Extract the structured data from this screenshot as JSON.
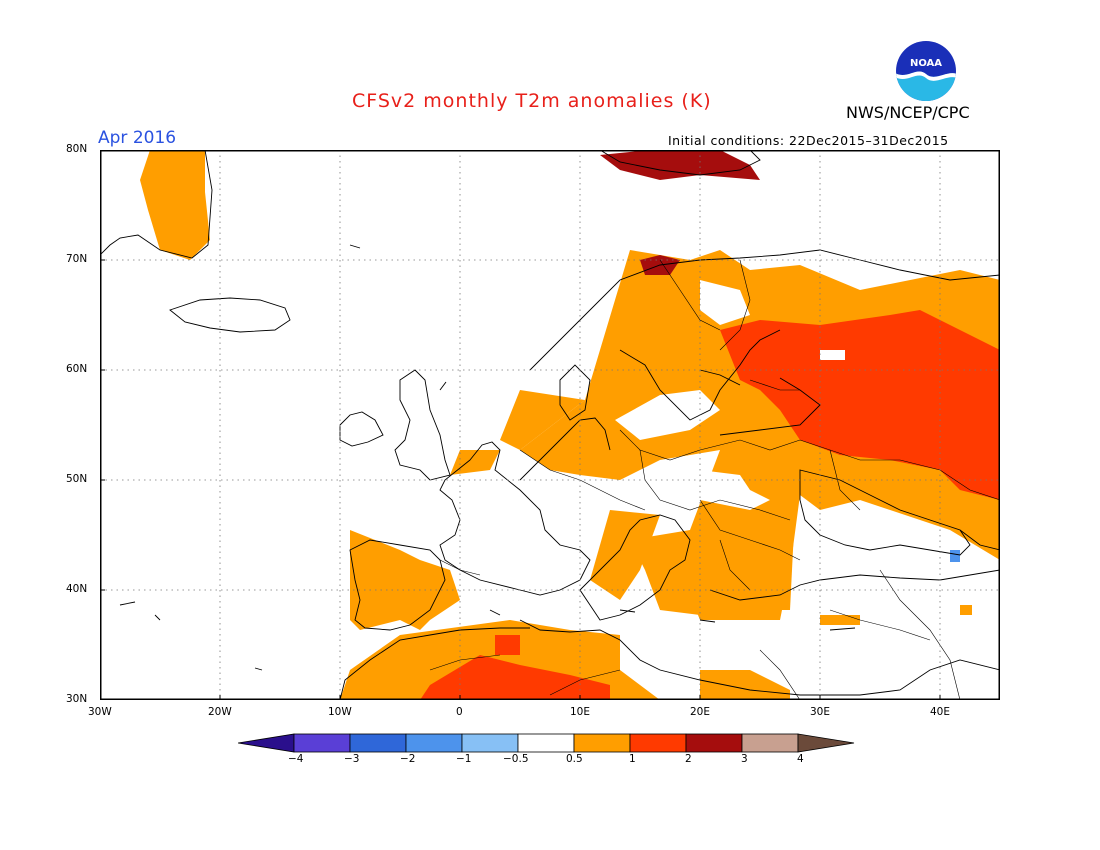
{
  "header": {
    "title": "CFSv2 monthly T2m anomalies (K)",
    "month": "Apr 2016",
    "org": "NWS/NCEP/CPC",
    "initial_conditions": "Initial conditions: 22Dec2015–31Dec2015",
    "logo_text": "NOAA",
    "logo_icon": "noaa-logo-icon"
  },
  "map": {
    "lon_range": [
      -30,
      45
    ],
    "lat_range": [
      30,
      80
    ],
    "lat_labels": [
      "80N",
      "70N",
      "60N",
      "50N",
      "40N",
      "30N"
    ],
    "lon_labels": [
      "30W",
      "20W",
      "10W",
      "0",
      "10E",
      "20E",
      "30E",
      "40E"
    ],
    "grid": "dotted",
    "gridlines_lat": [
      70,
      60,
      50,
      40
    ],
    "gridlines_lon": [
      -20,
      -10,
      0,
      10,
      20,
      30,
      40
    ]
  },
  "colorbar": {
    "labels": [
      "−4",
      "−3",
      "−2",
      "−1",
      "−0.5",
      "0.5",
      "1",
      "2",
      "3",
      "4"
    ],
    "colors": [
      "#2a0f8c",
      "#5a3fd6",
      "#2f67d9",
      "#4d93ec",
      "#87c0f5",
      "#ffffff",
      "#ff9e00",
      "#ff3a00",
      "#a50d0d",
      "#c8a090",
      "#6b4a3a"
    ]
  }
}
